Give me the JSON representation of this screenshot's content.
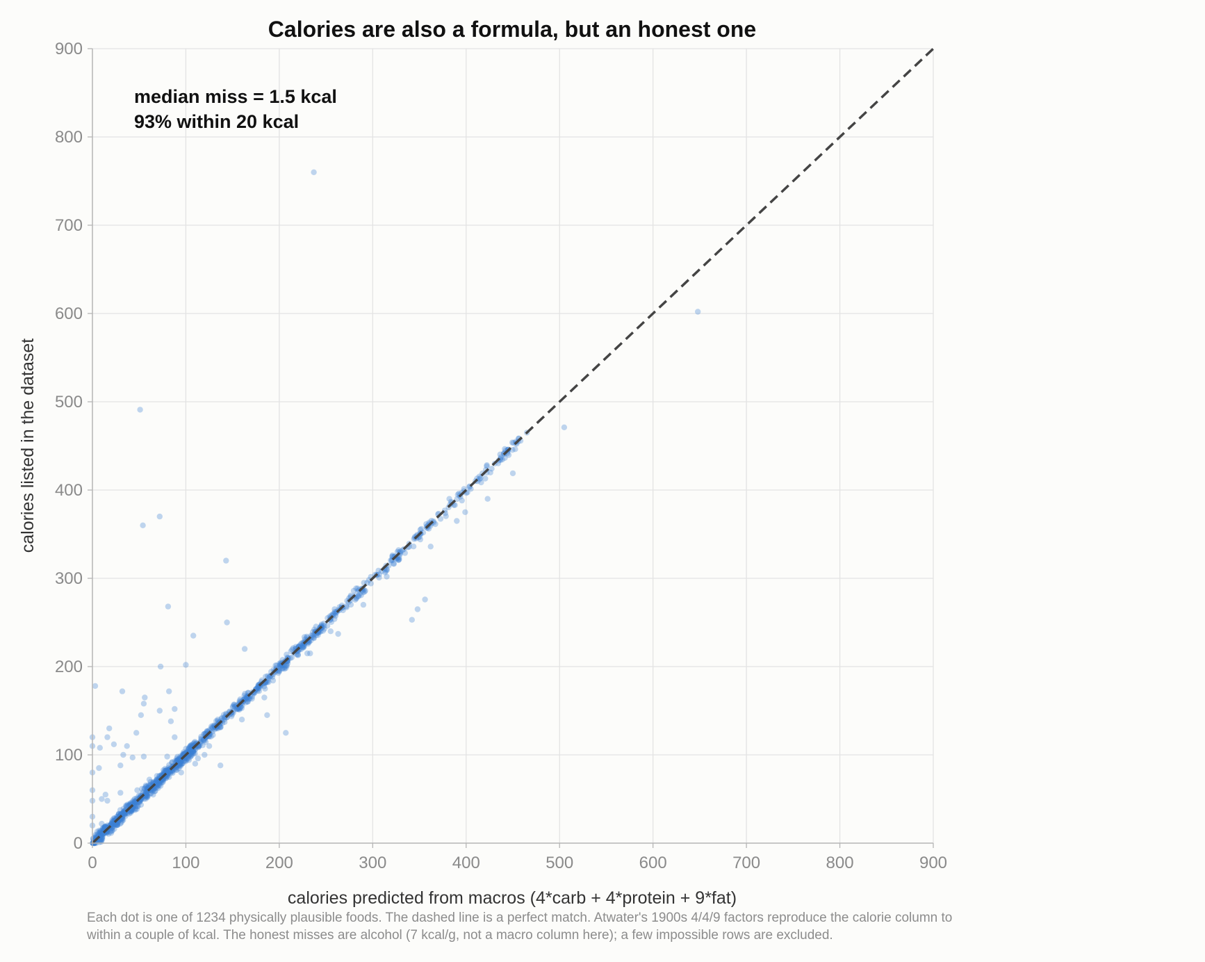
{
  "chart_data": {
    "type": "scatter",
    "title": "Calories are also a formula, but an honest one",
    "xlabel": "calories predicted from macros  (4*carb + 4*protein + 9*fat)",
    "ylabel": "calories listed in the dataset",
    "xlim": [
      0,
      900
    ],
    "ylim": [
      0,
      900
    ],
    "xticks": [
      0,
      100,
      200,
      300,
      400,
      500,
      600,
      700,
      800,
      900
    ],
    "yticks": [
      0,
      100,
      200,
      300,
      400,
      500,
      600,
      700,
      800,
      900
    ],
    "grid": true,
    "reference_line": {
      "style": "dashed",
      "color": "#444444",
      "from": [
        0,
        0
      ],
      "to": [
        900,
        900
      ]
    },
    "annotations": [
      "median miss = 1.5 kcal",
      "93% within 20 kcal"
    ],
    "footnote": [
      "Each dot is one of 1234 physically plausible foods. The dashed line is a perfect match. Atwater's 1900s 4/4/9 factors reproduce the calorie column to",
      "within a couple of kcal. The honest misses are alcohol (7 kcal/g, not a macro column here); a few impossible rows are excluded."
    ],
    "point_color": "#3a7fd5",
    "outliers": [
      [
        237,
        760
      ],
      [
        648,
        602
      ],
      [
        51,
        491
      ],
      [
        505,
        471
      ],
      [
        465,
        465
      ],
      [
        422,
        427
      ],
      [
        450,
        419
      ],
      [
        423,
        390
      ],
      [
        382,
        390
      ],
      [
        399,
        375
      ],
      [
        390,
        365
      ],
      [
        362,
        336
      ],
      [
        72,
        370
      ],
      [
        54,
        360
      ],
      [
        143,
        320
      ],
      [
        144,
        250
      ],
      [
        81,
        268
      ],
      [
        356,
        276
      ],
      [
        348,
        265
      ],
      [
        342,
        253
      ],
      [
        315,
        302
      ],
      [
        163,
        220
      ],
      [
        108,
        235
      ],
      [
        100,
        202
      ],
      [
        73,
        200
      ],
      [
        207,
        125
      ],
      [
        187,
        145
      ],
      [
        137,
        88
      ],
      [
        3,
        178
      ],
      [
        32,
        172
      ],
      [
        56,
        165
      ],
      [
        82,
        172
      ],
      [
        55,
        158
      ],
      [
        88,
        152
      ],
      [
        72,
        150
      ],
      [
        52,
        145
      ],
      [
        84,
        138
      ],
      [
        88,
        120
      ],
      [
        47,
        125
      ],
      [
        18,
        130
      ],
      [
        16,
        120
      ],
      [
        0,
        120
      ],
      [
        0,
        110
      ],
      [
        37,
        110
      ],
      [
        8,
        108
      ],
      [
        23,
        112
      ],
      [
        33,
        100
      ],
      [
        43,
        97
      ],
      [
        55,
        98
      ],
      [
        80,
        98
      ],
      [
        30,
        88
      ],
      [
        7,
        85
      ],
      [
        14,
        55
      ],
      [
        16,
        48
      ],
      [
        0,
        60
      ],
      [
        0,
        48
      ],
      [
        0,
        80
      ],
      [
        0,
        20
      ],
      [
        0,
        30
      ],
      [
        30,
        57
      ],
      [
        10,
        22
      ],
      [
        20,
        20
      ],
      [
        10,
        50
      ],
      [
        95,
        80
      ],
      [
        120,
        100
      ],
      [
        113,
        96
      ],
      [
        73,
        65
      ],
      [
        48,
        60
      ],
      [
        263,
        237
      ],
      [
        255,
        240
      ],
      [
        230,
        215
      ],
      [
        184,
        165
      ],
      [
        160,
        140
      ],
      [
        110,
        90
      ],
      [
        125,
        110
      ],
      [
        290,
        270
      ],
      [
        285,
        280
      ],
      [
        200,
        195
      ],
      [
        233,
        215
      ],
      [
        61,
        72
      ],
      [
        43,
        40
      ],
      [
        65,
        55
      ]
    ]
  }
}
